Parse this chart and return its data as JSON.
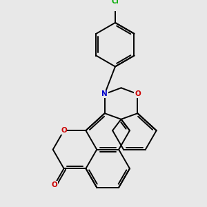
{
  "bg_color": "#e8e8e8",
  "bond_color": "#000000",
  "N_color": "#0000cc",
  "O_color": "#cc0000",
  "Cl_color": "#00aa00",
  "bond_lw": 1.4,
  "figsize": [
    3.0,
    3.0
  ],
  "dpi": 100,
  "xlim": [
    -2.5,
    2.5
  ],
  "ylim": [
    -3.2,
    3.5
  ]
}
